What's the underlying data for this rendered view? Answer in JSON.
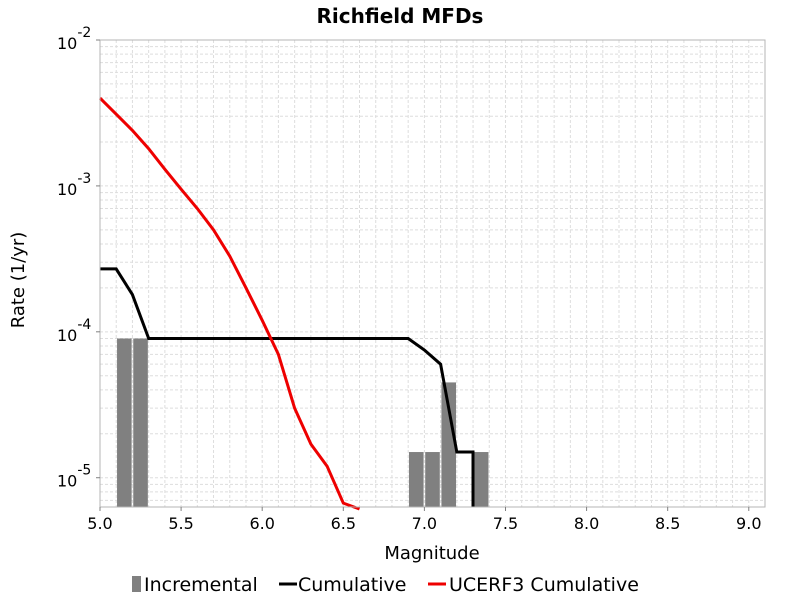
{
  "chart_data": {
    "type": "bar",
    "title": "Richfield MFDs",
    "xlabel": "Magnitude",
    "ylabel": "Rate (1/yr)",
    "xlim": [
      5.0,
      9.1
    ],
    "ylim": [
      6.3e-06,
      0.01
    ],
    "yscale": "log",
    "grid": true,
    "legend_position": "bottom",
    "x_ticks": [
      "5.0",
      "5.5",
      "6.0",
      "6.5",
      "7.0",
      "7.5",
      "8.0",
      "8.5",
      "9.0"
    ],
    "y_ticks": [
      {
        "base": "10",
        "exp": "-5"
      },
      {
        "base": "10",
        "exp": "-4"
      },
      {
        "base": "10",
        "exp": "-3"
      },
      {
        "base": "10",
        "exp": "-2"
      }
    ],
    "series": [
      {
        "name": "Incremental",
        "kind": "bar",
        "color": "#808080",
        "x": [
          5.15,
          5.25,
          6.95,
          7.05,
          7.15,
          7.35
        ],
        "y": [
          9e-05,
          9e-05,
          1.5e-05,
          1.5e-05,
          4.5e-05,
          1.5e-05
        ]
      },
      {
        "name": "Cumulative",
        "kind": "line",
        "color": "#000000",
        "x": [
          5.0,
          5.1,
          5.2,
          5.3,
          6.9,
          7.0,
          7.1,
          7.2,
          7.3,
          7.3
        ],
        "y": [
          0.00027,
          0.00027,
          0.00018,
          9e-05,
          9e-05,
          7.5e-05,
          6e-05,
          1.5e-05,
          1.5e-05,
          6.3e-06
        ]
      },
      {
        "name": "UCERF3 Cumulative",
        "kind": "line",
        "color": "#ee0000",
        "x": [
          5.0,
          5.1,
          5.2,
          5.3,
          5.4,
          5.5,
          5.6,
          5.7,
          5.8,
          5.9,
          6.0,
          6.1,
          6.2,
          6.3,
          6.4,
          6.5,
          6.6
        ],
        "y": [
          0.004,
          0.0031,
          0.0024,
          0.0018,
          0.0013,
          0.00095,
          0.0007,
          0.0005,
          0.00033,
          0.0002,
          0.00012,
          7e-05,
          3e-05,
          1.7e-05,
          1.2e-05,
          6.7e-06,
          6.1e-06
        ]
      }
    ]
  }
}
